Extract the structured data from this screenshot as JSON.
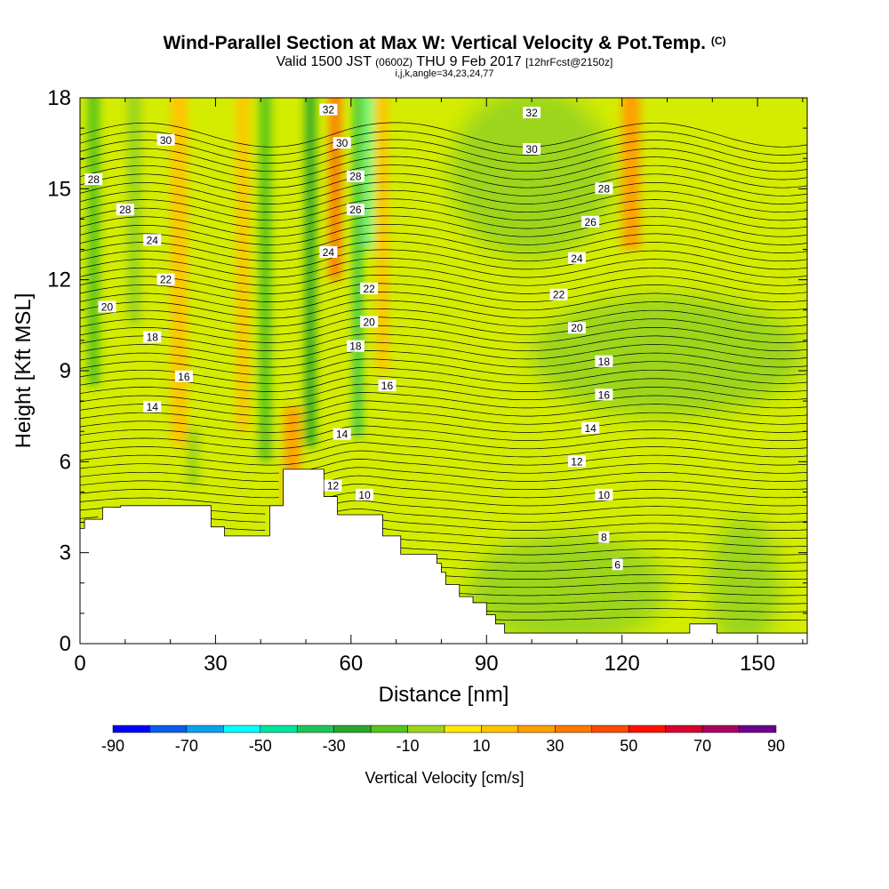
{
  "header": {
    "title": "Wind-Parallel Section at Max W: Vertical Velocity & Pot.Temp.",
    "title_mark": "(C)",
    "valid_prefix": "Valid 1500 JST",
    "valid_utc": "(0600Z)",
    "valid_date": "THU 9 Feb 2017",
    "forecast": "[12hrFcst@2150z]",
    "params": "i,j,k,angle=34,23,24,77"
  },
  "chart_data": {
    "type": "heatmap",
    "xlabel": "Distance [nm]",
    "ylabel": "Height [Kft MSL]",
    "xlim": [
      0,
      161
    ],
    "ylim": [
      0,
      18
    ],
    "x_ticks": [
      "0",
      "30",
      "60",
      "90",
      "120",
      "150"
    ],
    "y_ticks": [
      "0",
      "3",
      "6",
      "9",
      "12",
      "15",
      "18"
    ],
    "x_tick_values": [
      0,
      30,
      60,
      90,
      120,
      150
    ],
    "y_tick_values": [
      0,
      3,
      6,
      9,
      12,
      15,
      18
    ],
    "colorbar": {
      "label": "Vertical Velocity [cm/s]",
      "tick_labels": [
        "-90",
        "-70",
        "-50",
        "-30",
        "-10",
        "10",
        "30",
        "50",
        "70",
        "90"
      ],
      "levels": [
        -90,
        -80,
        -70,
        -60,
        -50,
        -40,
        -30,
        -20,
        -10,
        0,
        10,
        20,
        30,
        40,
        50,
        60,
        70,
        80,
        90
      ],
      "colors": [
        "#0000ff",
        "#0a5cf0",
        "#0ca0ef",
        "#00ffff",
        "#00e5a0",
        "#1ec45a",
        "#2aa82a",
        "#58c41e",
        "#9cd51c",
        "#d4ec00",
        "#ffe800",
        "#ffc400",
        "#ffa000",
        "#ff7800",
        "#ff4a00",
        "#ff1000",
        "#d8002c",
        "#a8005e",
        "#6a008e"
      ]
    },
    "terrain_profile": [
      [
        0,
        3.8
      ],
      [
        1,
        3.8
      ],
      [
        1,
        4.1
      ],
      [
        5,
        4.1
      ],
      [
        5,
        4.5
      ],
      [
        9,
        4.5
      ],
      [
        9,
        4.55
      ],
      [
        29,
        4.55
      ],
      [
        29,
        3.85
      ],
      [
        32,
        3.85
      ],
      [
        32,
        3.55
      ],
      [
        42,
        3.55
      ],
      [
        42,
        4.55
      ],
      [
        45,
        4.55
      ],
      [
        45,
        5.75
      ],
      [
        54,
        5.75
      ],
      [
        54,
        4.85
      ],
      [
        57,
        4.85
      ],
      [
        57,
        4.25
      ],
      [
        67,
        4.25
      ],
      [
        67,
        3.55
      ],
      [
        71,
        3.55
      ],
      [
        71,
        2.95
      ],
      [
        79,
        2.95
      ],
      [
        79,
        2.65
      ],
      [
        80,
        2.65
      ],
      [
        80,
        2.35
      ],
      [
        81,
        2.35
      ],
      [
        81,
        1.95
      ],
      [
        84,
        1.95
      ],
      [
        84,
        1.55
      ],
      [
        87,
        1.55
      ],
      [
        87,
        1.35
      ],
      [
        90,
        1.35
      ],
      [
        90,
        0.95
      ],
      [
        92,
        0.95
      ],
      [
        92,
        0.65
      ],
      [
        94,
        0.65
      ],
      [
        94,
        0.35
      ],
      [
        135,
        0.35
      ],
      [
        135,
        0.65
      ],
      [
        141,
        0.65
      ],
      [
        141,
        0.35
      ],
      [
        161,
        0.35
      ]
    ],
    "updraft_bands": [
      {
        "x": 3,
        "width": 2.5,
        "ymin": 8.5,
        "ymax": 18,
        "w": -20
      },
      {
        "x": 12,
        "width": 3,
        "ymin": 10.5,
        "ymax": 18,
        "w": -10
      },
      {
        "x": 22,
        "width": 3.5,
        "ymin": 6.5,
        "ymax": 18,
        "w": 20
      },
      {
        "x": 25,
        "width": 2.5,
        "ymin": 5.2,
        "ymax": 6.8,
        "w": -10
      },
      {
        "x": 36,
        "width": 2.5,
        "ymin": 7,
        "ymax": 18,
        "w": 20
      },
      {
        "x": 41,
        "width": 2.5,
        "ymin": 6,
        "ymax": 18,
        "w": -20
      },
      {
        "x": 47,
        "width": 3.5,
        "ymin": 4.5,
        "ymax": 7.5,
        "w": 30
      },
      {
        "x": 51,
        "width": 2.2,
        "ymin": 6.5,
        "ymax": 18,
        "w": -30
      },
      {
        "x": 56.5,
        "width": 2.5,
        "ymin": 12,
        "ymax": 18,
        "w": 40
      },
      {
        "x": 61.5,
        "width": 1.6,
        "ymin": 6.8,
        "ymax": 18,
        "w": -40
      },
      {
        "x": 64,
        "width": 1,
        "ymin": 13,
        "ymax": 18,
        "w": -60
      },
      {
        "x": 67,
        "width": 2.5,
        "ymin": 9,
        "ymax": 18,
        "w": 20
      },
      {
        "x": 122,
        "width": 4,
        "ymin": 13,
        "ymax": 18,
        "w": 30
      }
    ],
    "neutral_regions": [
      {
        "x": 108,
        "y": 1.8,
        "rx": 22,
        "ry": 1.8,
        "w": -10
      },
      {
        "x": 147,
        "y": 2,
        "rx": 8,
        "ry": 2.2,
        "w": -10
      },
      {
        "x": 100,
        "y": 15.5,
        "rx": 18,
        "ry": 2.8,
        "w": -10
      },
      {
        "x": 130,
        "y": 9.5,
        "rx": 30,
        "ry": 2,
        "w": -10
      }
    ],
    "theta_label_levels": [
      6,
      8,
      10,
      12,
      14,
      16,
      18,
      20,
      22,
      24,
      26,
      28,
      30,
      32
    ],
    "theta_labels": [
      {
        "text": "32",
        "x": 55,
        "y": 17.6
      },
      {
        "text": "30",
        "x": 19,
        "y": 16.6
      },
      {
        "text": "30",
        "x": 58,
        "y": 16.5
      },
      {
        "text": "28",
        "x": 3,
        "y": 15.3
      },
      {
        "text": "28",
        "x": 61,
        "y": 15.4
      },
      {
        "text": "28",
        "x": 10,
        "y": 14.3
      },
      {
        "text": "26",
        "x": 61,
        "y": 14.3
      },
      {
        "text": "24",
        "x": 16,
        "y": 13.3
      },
      {
        "text": "24",
        "x": 55,
        "y": 12.9
      },
      {
        "text": "22",
        "x": 19,
        "y": 12
      },
      {
        "text": "22",
        "x": 64,
        "y": 11.7
      },
      {
        "text": "20",
        "x": 6,
        "y": 11.1
      },
      {
        "text": "20",
        "x": 64,
        "y": 10.6
      },
      {
        "text": "18",
        "x": 16,
        "y": 10.1
      },
      {
        "text": "18",
        "x": 61,
        "y": 9.8
      },
      {
        "text": "16",
        "x": 23,
        "y": 8.8
      },
      {
        "text": "16",
        "x": 68,
        "y": 8.5
      },
      {
        "text": "14",
        "x": 16,
        "y": 7.8
      },
      {
        "text": "14",
        "x": 58,
        "y": 6.9
      },
      {
        "text": "12",
        "x": 56,
        "y": 5.2
      },
      {
        "text": "10",
        "x": 63,
        "y": 4.9
      },
      {
        "text": "32",
        "x": 100,
        "y": 17.5
      },
      {
        "text": "30",
        "x": 100,
        "y": 16.3
      },
      {
        "text": "28",
        "x": 116,
        "y": 15
      },
      {
        "text": "26",
        "x": 113,
        "y": 13.9
      },
      {
        "text": "24",
        "x": 110,
        "y": 12.7
      },
      {
        "text": "22",
        "x": 106,
        "y": 11.5
      },
      {
        "text": "20",
        "x": 110,
        "y": 10.4
      },
      {
        "text": "18",
        "x": 116,
        "y": 9.3
      },
      {
        "text": "16",
        "x": 116,
        "y": 8.2
      },
      {
        "text": "14",
        "x": 113,
        "y": 7.1
      },
      {
        "text": "12",
        "x": 110,
        "y": 6
      },
      {
        "text": "10",
        "x": 116,
        "y": 4.9
      },
      {
        "text": "8",
        "x": 116,
        "y": 3.5
      },
      {
        "text": "6",
        "x": 119,
        "y": 2.6
      }
    ]
  }
}
